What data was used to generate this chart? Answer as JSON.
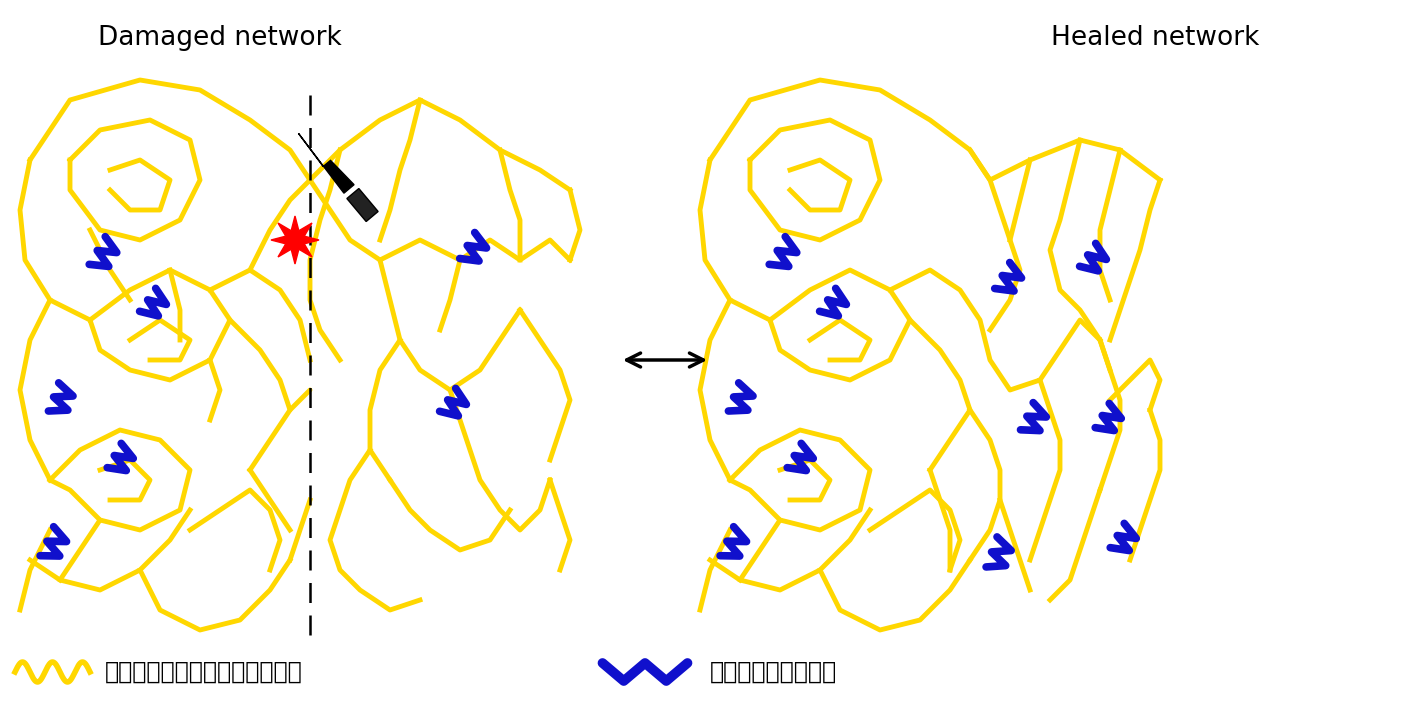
{
  "title_damaged": "Damaged network",
  "title_healed": "Healed network",
  "legend_yellow": "柔らかな結合能力に富んだ部分",
  "legend_blue": "硬い結晶構造の部分",
  "yellow_color": "#FFD700",
  "blue_color": "#1010CC",
  "bg_color": "#FFFFFF",
  "title_fontsize": 19,
  "legend_fontsize": 17,
  "lw_yellow": 3.5,
  "lw_blue": 5.5
}
